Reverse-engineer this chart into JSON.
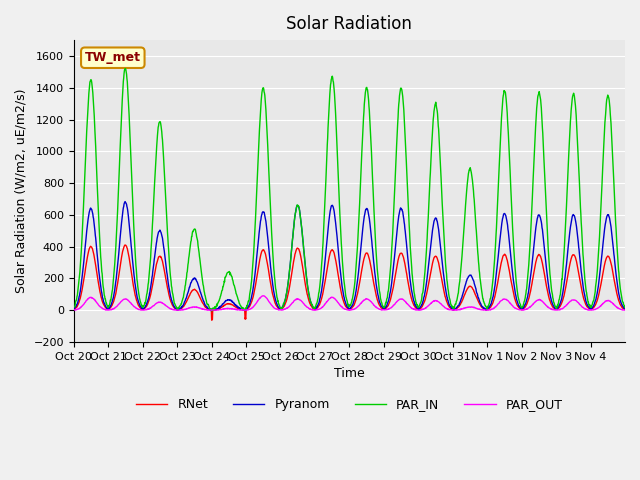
{
  "title": "Solar Radiation",
  "ylabel": "Solar Radiation (W/m2, uE/m2/s)",
  "xlabel": "Time",
  "ylim": [
    -200,
    1700
  ],
  "yticks": [
    -200,
    0,
    200,
    400,
    600,
    800,
    1000,
    1200,
    1400,
    1600
  ],
  "x_tick_labels": [
    "Oct 20",
    "Oct 21",
    "Oct 22",
    "Oct 23",
    "Oct 24",
    "Oct 25",
    "Oct 26",
    "Oct 27",
    "Oct 28",
    "Oct 29",
    "Oct 30",
    "Oct 31",
    "Nov 1",
    "Nov 2",
    "Nov 3",
    "Nov 4"
  ],
  "annotation_text": "TW_met",
  "annotation_bg": "#ffffcc",
  "annotation_border": "#cc8800",
  "series": {
    "RNet": {
      "color": "#ff0000",
      "lw": 1.0
    },
    "Pyranom": {
      "color": "#0000cc",
      "lw": 1.0
    },
    "PAR_IN": {
      "color": "#00cc00",
      "lw": 1.0
    },
    "PAR_OUT": {
      "color": "#ff00ff",
      "lw": 1.0
    }
  },
  "fig_bg": "#f0f0f0",
  "plot_bg": "#e8e8e8",
  "grid_color": "#ffffff",
  "n_days": 16,
  "points_per_day": 96,
  "par_in_peaks": [
    1450,
    1520,
    1190,
    510,
    240,
    1400,
    660,
    1470,
    1400,
    1400,
    1300,
    890,
    1380,
    1370,
    1360,
    1350
  ],
  "pyranom_peaks": [
    640,
    680,
    500,
    200,
    65,
    620,
    660,
    660,
    640,
    640,
    580,
    220,
    610,
    600,
    600,
    600
  ],
  "rnet_peaks": [
    400,
    410,
    340,
    130,
    40,
    380,
    390,
    380,
    360,
    360,
    340,
    150,
    350,
    350,
    350,
    340
  ],
  "par_out_peaks": [
    80,
    70,
    50,
    20,
    10,
    90,
    70,
    80,
    70,
    70,
    60,
    20,
    70,
    65,
    65,
    60
  ]
}
